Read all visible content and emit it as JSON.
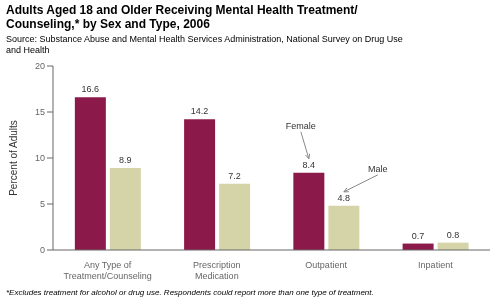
{
  "chart_data": {
    "type": "bar",
    "title": "Adults Aged 18 and Older Receiving Mental Health Treatment/\nCounseling,* by Sex and Type, 2006",
    "source": "Source: Substance Abuse and Mental Health Services Administration, National Survey on Drug Use\nand Health",
    "footnote": "*Excludes treatment for alcohol or drug use. Respondents could report more than one type of treatment.",
    "categories": [
      "Any Type of\nTreatment/Counseling",
      "Prescription\nMedication",
      "Outpatient",
      "Inpatient"
    ],
    "series": [
      {
        "name": "Female",
        "color": "#8B1A4A",
        "values": [
          16.6,
          14.2,
          8.4,
          0.7
        ]
      },
      {
        "name": "Male",
        "color": "#D4D4A8",
        "values": [
          8.9,
          7.2,
          4.8,
          0.8
        ]
      }
    ],
    "ylabel": "Percent of Adults",
    "ylim": [
      0,
      20
    ],
    "yticks": [
      0,
      5,
      10,
      15,
      20
    ],
    "grid": false,
    "data_labels": true,
    "annotations": [
      {
        "text": "Female",
        "series": "Female",
        "category": "Outpatient"
      },
      {
        "text": "Male",
        "series": "Male",
        "category": "Outpatient"
      }
    ]
  }
}
